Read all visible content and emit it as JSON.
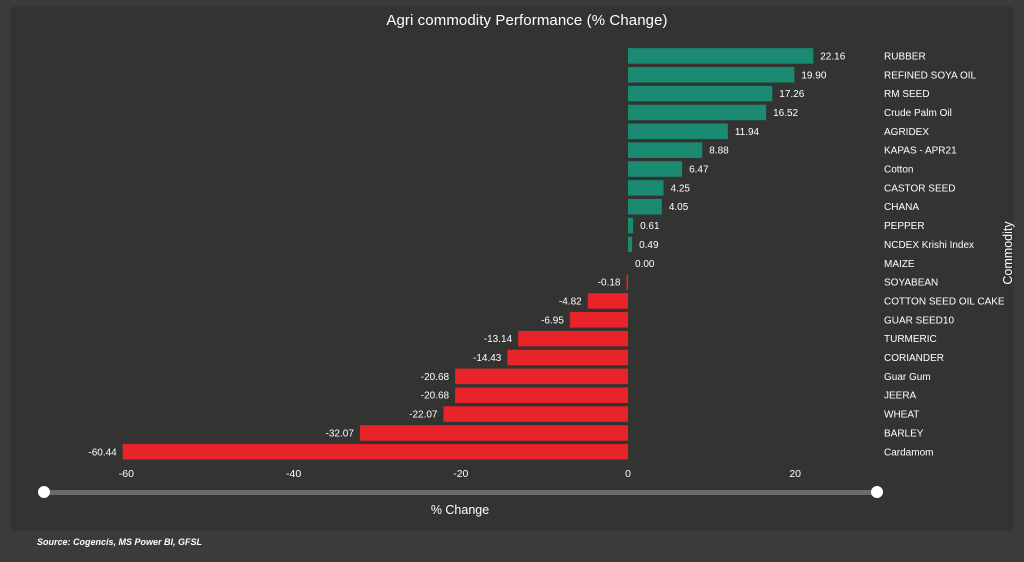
{
  "chart_data": {
    "type": "bar",
    "orientation": "horizontal",
    "title": "Agri commodity Performance (% Change)",
    "xlabel": "% Change",
    "ylabel": "Commodity",
    "xlim": [
      -60.44,
      22.16
    ],
    "xticks": [
      -60,
      -40,
      -20,
      0,
      20
    ],
    "categories": [
      "RUBBER",
      "REFINED SOYA OIL",
      "RM SEED",
      "Crude Palm Oil",
      "AGRIDEX",
      "KAPAS - APR21",
      "Cotton",
      "CASTOR SEED",
      "CHANA",
      "PEPPER",
      "NCDEX Krishi Index",
      "MAIZE",
      "SOYABEAN",
      "COTTON SEED OIL CAKE",
      "GUAR SEED10",
      "TURMERIC",
      "CORIANDER",
      "Guar Gum",
      "JEERA",
      "WHEAT",
      "BARLEY",
      "Cardamom"
    ],
    "values": [
      22.16,
      19.9,
      17.26,
      16.52,
      11.94,
      8.88,
      6.47,
      4.25,
      4.05,
      0.61,
      0.49,
      0.0,
      -0.18,
      -4.82,
      -6.95,
      -13.14,
      -14.43,
      -20.68,
      -20.68,
      -22.07,
      -32.07,
      -60.44
    ],
    "value_labels": [
      "22.16",
      "19.90",
      "17.26",
      "16.52",
      "11.94",
      "8.88",
      "6.47",
      "4.25",
      "4.05",
      "0.61",
      "0.49",
      "0.00",
      "-0.18",
      "-4.82",
      "-6.95",
      "-13.14",
      "-14.43",
      "-20.68",
      "-20.68",
      "-22.07",
      "-32.07",
      "-60.44"
    ],
    "colors": {
      "positive": "#1a8a72",
      "negative": "#e8232a",
      "background": "#333432"
    },
    "grid": false,
    "category_axis_position": "right"
  },
  "source": "Source: Cogencis, MS Power BI, GFSL"
}
